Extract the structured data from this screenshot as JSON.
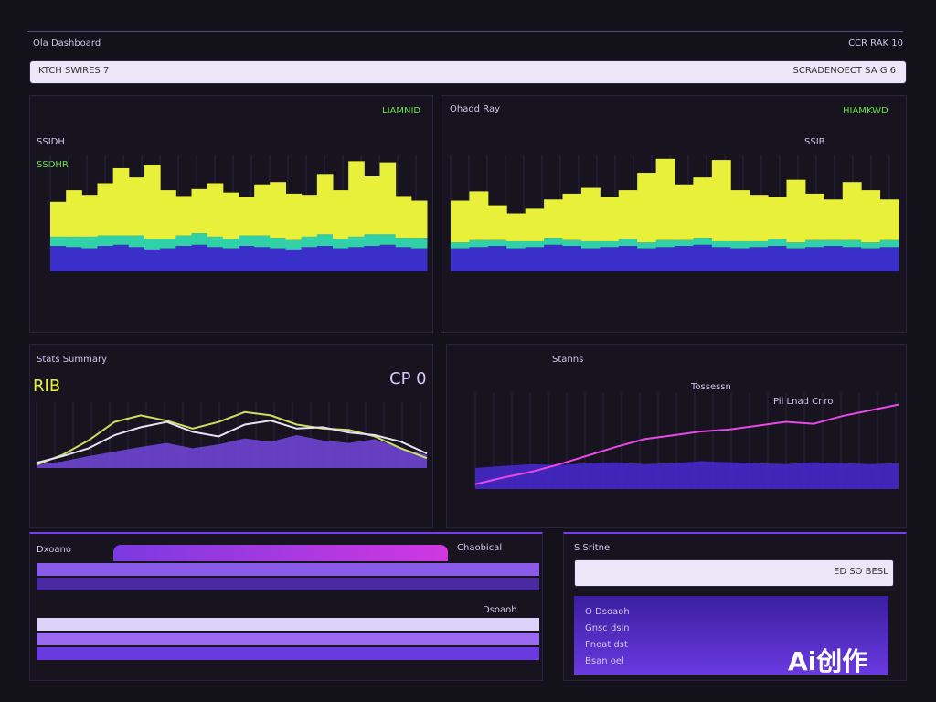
{
  "header": {
    "title": "Ola Dashboard",
    "right": "CCR RAK 10"
  },
  "search": {
    "placeholder": "KTCH SWIRES 7",
    "right": "SCRADENOECT SA G 6"
  },
  "panels": [
    {
      "title": "SSIDH",
      "badge": "LIAMNID",
      "label": "SSDHR"
    },
    {
      "title": "Ohadd Ray",
      "badge": "HIAMKWD",
      "label": "SSIB"
    },
    {
      "title": "Stats Summary",
      "badge": "CP 0",
      "label": "RIB"
    },
    {
      "title": "Stanns",
      "badge": "Tossessn",
      "label": "Pil Lnad Cnro"
    },
    {
      "title": "Dxoano",
      "badge": "Chaobical",
      "label": "Dsoaoh"
    },
    {
      "title": "S Sritne",
      "badge": "ED SO BESL",
      "items": [
        "O Dsoaoh",
        "Gnsc dsin",
        "Fnoat dst",
        "Bsan oel"
      ]
    }
  ],
  "watermark": "Ai创作",
  "chart_data": [
    {
      "type": "bar",
      "stacked": true,
      "ylim": [
        0,
        100
      ],
      "series": [
        {
          "color": "#3a2fc8",
          "values": [
            22,
            21,
            20,
            22,
            23,
            21,
            19,
            20,
            22,
            23,
            21,
            20,
            22,
            21,
            20,
            19,
            21,
            22,
            20,
            21,
            22,
            23,
            21,
            20
          ]
        },
        {
          "color": "#30d0a8",
          "values": [
            8,
            9,
            10,
            9,
            8,
            10,
            9,
            8,
            9,
            10,
            9,
            8,
            9,
            10,
            9,
            8,
            9,
            10,
            8,
            9,
            10,
            9,
            8,
            9
          ]
        },
        {
          "color": "#e8f03a",
          "values": [
            30,
            40,
            36,
            45,
            58,
            50,
            64,
            42,
            34,
            38,
            46,
            40,
            33,
            44,
            48,
            40,
            36,
            52,
            42,
            65,
            50,
            62,
            36,
            32
          ]
        }
      ]
    },
    {
      "type": "bar",
      "stacked": true,
      "ylim": [
        0,
        100
      ],
      "series": [
        {
          "color": "#3a2fc8",
          "values": [
            20,
            21,
            22,
            20,
            21,
            23,
            22,
            20,
            21,
            22,
            20,
            21,
            22,
            23,
            21,
            20,
            21,
            22,
            20,
            21,
            22,
            21,
            20,
            21
          ]
        },
        {
          "color": "#30d0a8",
          "values": [
            5,
            6,
            5,
            6,
            5,
            6,
            5,
            6,
            5,
            6,
            5,
            6,
            5,
            6,
            5,
            6,
            5,
            6,
            5,
            6,
            5,
            6,
            5,
            6
          ]
        },
        {
          "color": "#e8f03a",
          "values": [
            36,
            42,
            30,
            24,
            28,
            33,
            40,
            46,
            38,
            42,
            60,
            70,
            48,
            52,
            70,
            44,
            40,
            36,
            54,
            40,
            35,
            50,
            45,
            35
          ]
        }
      ]
    },
    {
      "type": "line",
      "ylim": [
        0,
        100
      ],
      "series": [
        {
          "color": "#7a48e8",
          "area": true,
          "values": [
            5,
            10,
            18,
            25,
            32,
            38,
            30,
            36,
            45,
            40,
            50,
            42,
            38,
            44,
            30,
            20
          ]
        },
        {
          "color": "#c8e060",
          "values": [
            5,
            20,
            42,
            70,
            80,
            72,
            60,
            70,
            85,
            80,
            66,
            60,
            58,
            48,
            30,
            15
          ]
        },
        {
          "color": "#e6e0f6",
          "values": [
            8,
            18,
            30,
            50,
            62,
            70,
            55,
            48,
            66,
            72,
            60,
            62,
            54,
            50,
            40,
            22
          ]
        }
      ]
    },
    {
      "type": "line",
      "ylim": [
        0,
        100
      ],
      "series": [
        {
          "color": "#4a2ae0",
          "area": true,
          "values": [
            22,
            24,
            26,
            25,
            27,
            28,
            26,
            27,
            29,
            28,
            27,
            26,
            28,
            27,
            26,
            27
          ]
        },
        {
          "color": "#e848e8",
          "values": [
            5,
            12,
            18,
            26,
            35,
            44,
            52,
            56,
            60,
            62,
            66,
            70,
            68,
            76,
            82,
            88
          ]
        }
      ]
    }
  ]
}
